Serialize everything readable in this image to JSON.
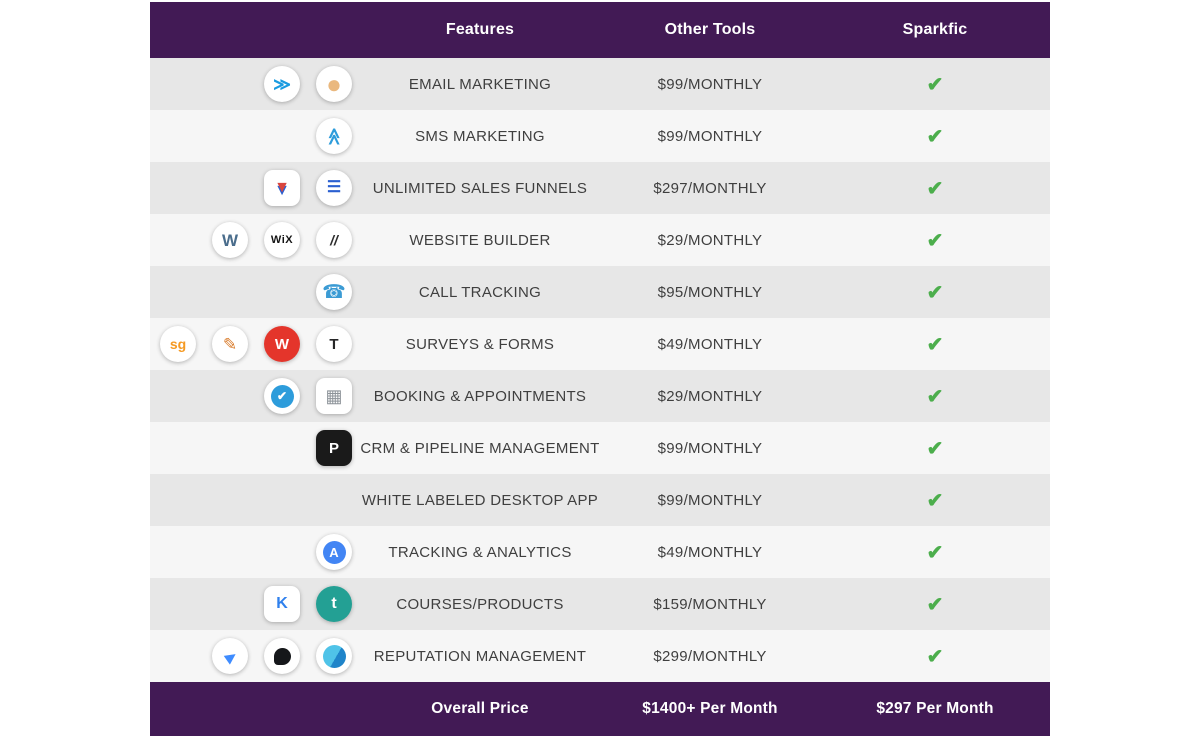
{
  "header": {
    "features": "Features",
    "other_tools": "Other Tools",
    "sparkfic": "Sparkfic"
  },
  "footer": {
    "label": "Overall Price",
    "other_tools_price": "$1400+ Per Month",
    "sparkfic_price": "$297 Per Month"
  },
  "check_symbol": "✔",
  "colors": {
    "header_bg": "#421a55",
    "row_dark": "#e7e7e7",
    "row_light": "#f6f6f6",
    "check_green": "#4cae4c",
    "text": "#3f3f3f"
  },
  "rows": [
    {
      "feature": "EMAIL MARKETING",
      "price": "$99/MONTHLY",
      "icons": [
        {
          "name": "send-arrow-icon",
          "glyph": "≫"
        },
        {
          "name": "mailchimp-icon",
          "glyph": "●"
        }
      ]
    },
    {
      "feature": "SMS MARKETING",
      "price": "$99/MONTHLY",
      "icons": [
        {
          "name": "chevrons-up-icon",
          "glyph": "≫"
        }
      ]
    },
    {
      "feature": "UNLIMITED SALES FUNNELS",
      "price": "$297/MONTHLY",
      "icons": [
        {
          "name": "clickfunnels-icon",
          "glyph": "▼"
        },
        {
          "name": "stacked-layers-icon",
          "glyph": "☰"
        }
      ]
    },
    {
      "feature": "WEBSITE BUILDER",
      "price": "$29/MONTHLY",
      "icons": [
        {
          "name": "wordpress-icon",
          "glyph": "W"
        },
        {
          "name": "wix-icon",
          "glyph": "WiX"
        },
        {
          "name": "squarespace-icon",
          "glyph": "//"
        }
      ]
    },
    {
      "feature": "CALL TRACKING",
      "price": "$95/MONTHLY",
      "icons": [
        {
          "name": "phone-icon",
          "glyph": "☎"
        }
      ]
    },
    {
      "feature": "SURVEYS & FORMS",
      "price": "$49/MONTHLY",
      "icons": [
        {
          "name": "surveygizmo-icon",
          "glyph": "sg"
        },
        {
          "name": "pen-icon",
          "glyph": "✎"
        },
        {
          "name": "wufoo-icon",
          "glyph": "W"
        },
        {
          "name": "typeform-icon",
          "glyph": "T"
        }
      ]
    },
    {
      "feature": "BOOKING & APPOINTMENTS",
      "price": "$29/MONTHLY",
      "icons": [
        {
          "name": "check-circle-icon",
          "glyph": "✔"
        },
        {
          "name": "calendar-icon",
          "glyph": "▦"
        }
      ]
    },
    {
      "feature": "CRM & PIPELINE MANAGEMENT",
      "price": "$99/MONTHLY",
      "icons": [
        {
          "name": "pipedrive-icon",
          "glyph": "P"
        }
      ]
    },
    {
      "feature": "WHITE LABELED DESKTOP APP",
      "price": "$99/MONTHLY",
      "icons": []
    },
    {
      "feature": "TRACKING & ANALYTICS",
      "price": "$49/MONTHLY",
      "icons": [
        {
          "name": "analytics-icon",
          "glyph": "A"
        }
      ]
    },
    {
      "feature": "COURSES/PRODUCTS",
      "price": "$159/MONTHLY",
      "icons": [
        {
          "name": "kajabi-icon",
          "glyph": "K"
        },
        {
          "name": "teachable-icon",
          "glyph": "t"
        }
      ]
    },
    {
      "feature": "REPUTATION MANAGEMENT",
      "price": "$299/MONTHLY",
      "icons": [
        {
          "name": "bird-icon",
          "glyph": "▶"
        },
        {
          "name": "black-bubble-icon",
          "glyph": ""
        },
        {
          "name": "wave-circle-icon",
          "glyph": ""
        }
      ]
    }
  ],
  "chart_data": {
    "type": "table",
    "columns": [
      "Features",
      "Other Tools",
      "Sparkfic"
    ],
    "rows": [
      [
        "EMAIL MARKETING",
        "$99/MONTHLY",
        "✔"
      ],
      [
        "SMS MARKETING",
        "$99/MONTHLY",
        "✔"
      ],
      [
        "UNLIMITED SALES FUNNELS",
        "$297/MONTHLY",
        "✔"
      ],
      [
        "WEBSITE BUILDER",
        "$29/MONTHLY",
        "✔"
      ],
      [
        "CALL TRACKING",
        "$95/MONTHLY",
        "✔"
      ],
      [
        "SURVEYS & FORMS",
        "$49/MONTHLY",
        "✔"
      ],
      [
        "BOOKING & APPOINTMENTS",
        "$29/MONTHLY",
        "✔"
      ],
      [
        "CRM & PIPELINE MANAGEMENT",
        "$99/MONTHLY",
        "✔"
      ],
      [
        "WHITE LABELED DESKTOP APP",
        "$99/MONTHLY",
        "✔"
      ],
      [
        "TRACKING & ANALYTICS",
        "$49/MONTHLY",
        "✔"
      ],
      [
        "COURSES/PRODUCTS",
        "$159/MONTHLY",
        "✔"
      ],
      [
        "REPUTATION MANAGEMENT",
        "$299/MONTHLY",
        "✔"
      ]
    ],
    "footer": [
      "Overall Price",
      "$1400+ Per Month",
      "$297 Per Month"
    ]
  }
}
